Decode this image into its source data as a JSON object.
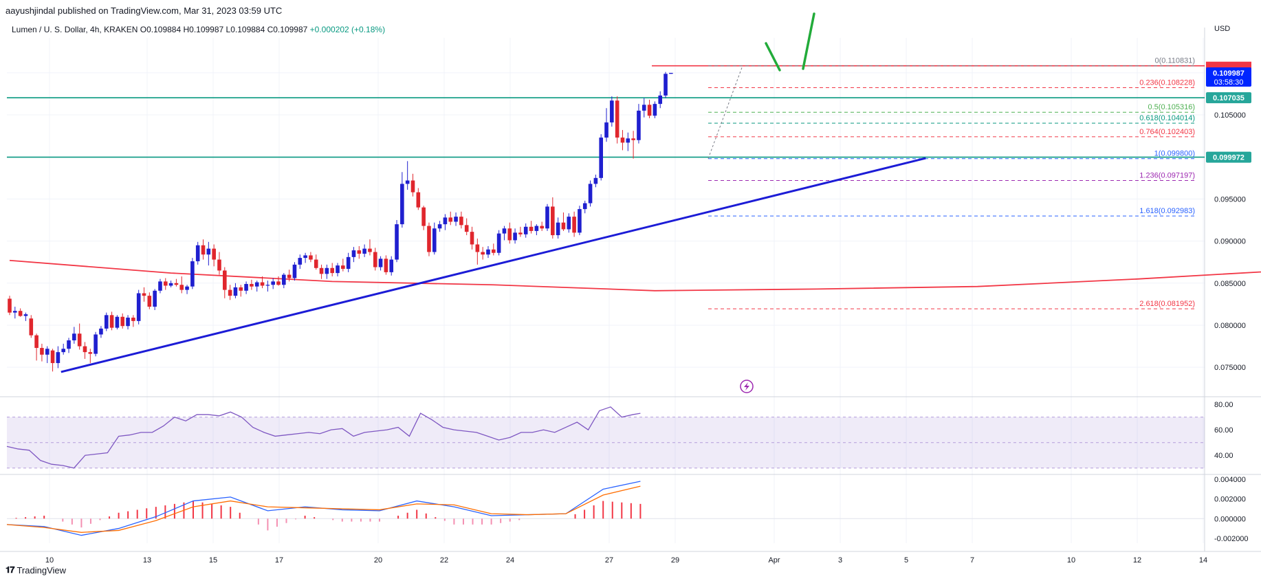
{
  "header": {
    "published": "aayushjindal published on TradingView.com, Mar 31, 2023 03:59 UTC",
    "symbol": "Lumen / U. S. Dollar, 4h, KRAKEN",
    "ohlc": "O0.109884 H0.109987 L0.109884 C0.109987",
    "change": "+0.000202 (+0.18%)"
  },
  "footer": {
    "brand": "TradingView",
    "logo": "tradingview-logo-icon"
  },
  "chart_data": {
    "type": "candlestick",
    "currency_label": "USD",
    "x_tick_labels": [
      "10",
      "13",
      "15",
      "17",
      "20",
      "22",
      "24",
      "27",
      "29",
      "Apr",
      "3",
      "5",
      "7",
      "10",
      "12",
      "14"
    ],
    "price_axis": {
      "ylim": [
        0.0715,
        0.1162
      ],
      "ticks": [
        "0.075000",
        "0.080000",
        "0.085000",
        "0.090000",
        "0.095000",
        "0.105000"
      ]
    },
    "price_badges": [
      {
        "label": "0.109987",
        "sub": "03:58:30",
        "value": 0.109987,
        "color": "#0026ff"
      },
      {
        "label": "0.107035",
        "value": 0.107035,
        "color": "#26a69a"
      },
      {
        "label": "0.099972",
        "value": 0.099972,
        "color": "#26a69a"
      }
    ],
    "horizontal_lines": [
      {
        "value": 0.107035,
        "color": "#089981"
      },
      {
        "value": 0.099972,
        "color": "#089981"
      },
      {
        "value": 0.11083,
        "color": "#f23645"
      }
    ],
    "trendline": {
      "from": {
        "x": 10.35,
        "y": 0.07445
      },
      "to": {
        "x": 36.55,
        "y": 0.09985
      },
      "color": "#1c1cd6"
    },
    "fibonacci": [
      {
        "label": "0(0.110831)",
        "value": 0.110831,
        "color": "#787b86"
      },
      {
        "label": "0.236(0.108228)",
        "value": 0.108228,
        "color": "#f23645"
      },
      {
        "label": "0.5(0.105316)",
        "value": 0.105316,
        "color": "#4caf50"
      },
      {
        "label": "0.618(0.104014)",
        "value": 0.104014,
        "color": "#089981"
      },
      {
        "label": "0.764(0.102403)",
        "value": 0.102403,
        "color": "#f23645"
      },
      {
        "label": "1(0.099800)",
        "value": 0.0998,
        "color": "#2962ff"
      },
      {
        "label": "1.236(0.097197)",
        "value": 0.097197,
        "color": "#9c27b0"
      },
      {
        "label": "1.618(0.092983)",
        "value": 0.092983,
        "color": "#2962ff"
      },
      {
        "label": "2.618(0.081952)",
        "value": 0.081952,
        "color": "#f23645"
      }
    ],
    "candles": [
      [
        0.08315,
        0.0835,
        0.0812,
        0.0815
      ],
      [
        0.0815,
        0.0822,
        0.0808,
        0.0817
      ],
      [
        0.0817,
        0.082,
        0.081,
        0.0811
      ],
      [
        0.0811,
        0.0815,
        0.0805,
        0.0813
      ],
      [
        0.0808,
        0.0812,
        0.0785,
        0.0788
      ],
      [
        0.0788,
        0.079,
        0.0758,
        0.0773
      ],
      [
        0.0773,
        0.0778,
        0.0757,
        0.0765
      ],
      [
        0.0765,
        0.0775,
        0.0755,
        0.0772
      ],
      [
        0.077,
        0.0772,
        0.0745,
        0.0755
      ],
      [
        0.0755,
        0.0775,
        0.0749,
        0.0768
      ],
      [
        0.0768,
        0.0778,
        0.0765,
        0.0772
      ],
      [
        0.0772,
        0.0785,
        0.0767,
        0.0782
      ],
      [
        0.0782,
        0.0798,
        0.0778,
        0.079
      ],
      [
        0.079,
        0.0802,
        0.0771,
        0.0775
      ],
      [
        0.0775,
        0.078,
        0.076,
        0.0768
      ],
      [
        0.0768,
        0.0772,
        0.0755,
        0.0766
      ],
      [
        0.0766,
        0.0792,
        0.0763,
        0.0789
      ],
      [
        0.0789,
        0.0799,
        0.0785,
        0.0796
      ],
      [
        0.0796,
        0.0815,
        0.0793,
        0.0812
      ],
      [
        0.0812,
        0.0816,
        0.0794,
        0.0797
      ],
      [
        0.0797,
        0.0812,
        0.0795,
        0.081
      ],
      [
        0.081,
        0.0814,
        0.0796,
        0.0799
      ],
      [
        0.0799,
        0.0812,
        0.0795,
        0.0809
      ],
      [
        0.0809,
        0.0812,
        0.0798,
        0.0805
      ],
      [
        0.0805,
        0.0842,
        0.0801,
        0.0838
      ],
      [
        0.0838,
        0.0845,
        0.0828,
        0.0835
      ],
      [
        0.0835,
        0.0839,
        0.0819,
        0.0822
      ],
      [
        0.0822,
        0.0843,
        0.0818,
        0.0841
      ],
      [
        0.0841,
        0.0855,
        0.0838,
        0.0852
      ],
      [
        0.0852,
        0.0856,
        0.0842,
        0.0847
      ],
      [
        0.0847,
        0.0853,
        0.0845,
        0.085
      ],
      [
        0.085,
        0.0855,
        0.0846,
        0.0848
      ],
      [
        0.0848,
        0.0858,
        0.0838,
        0.0842
      ],
      [
        0.0842,
        0.0848,
        0.0837,
        0.0846
      ],
      [
        0.0846,
        0.088,
        0.0843,
        0.0876
      ],
      [
        0.0876,
        0.0899,
        0.0872,
        0.0895
      ],
      [
        0.0895,
        0.0902,
        0.0878,
        0.0884
      ],
      [
        0.0884,
        0.0899,
        0.0871,
        0.0891
      ],
      [
        0.0891,
        0.0896,
        0.087,
        0.0878
      ],
      [
        0.0878,
        0.0887,
        0.086,
        0.0865
      ],
      [
        0.0865,
        0.0869,
        0.0832,
        0.0842
      ],
      [
        0.0842,
        0.0848,
        0.083,
        0.0835
      ],
      [
        0.0835,
        0.085,
        0.0832,
        0.0845
      ],
      [
        0.0845,
        0.0848,
        0.0834,
        0.0841
      ],
      [
        0.0841,
        0.0852,
        0.0837,
        0.0849
      ],
      [
        0.0849,
        0.0854,
        0.0842,
        0.0846
      ],
      [
        0.0846,
        0.0853,
        0.084,
        0.0851
      ],
      [
        0.0851,
        0.0858,
        0.0844,
        0.0847
      ],
      [
        0.0847,
        0.0853,
        0.084,
        0.0848
      ],
      [
        0.0848,
        0.0856,
        0.0843,
        0.0852
      ],
      [
        0.0852,
        0.0858,
        0.0847,
        0.0848
      ],
      [
        0.0848,
        0.0862,
        0.0844,
        0.086
      ],
      [
        0.086,
        0.0866,
        0.0852,
        0.0856
      ],
      [
        0.0856,
        0.0875,
        0.0853,
        0.0872
      ],
      [
        0.0872,
        0.0884,
        0.0867,
        0.088
      ],
      [
        0.088,
        0.0886,
        0.0874,
        0.0883
      ],
      [
        0.0883,
        0.0887,
        0.0875,
        0.0878
      ],
      [
        0.0878,
        0.0884,
        0.0866,
        0.0868
      ],
      [
        0.0868,
        0.0872,
        0.0855,
        0.0861
      ],
      [
        0.0861,
        0.0872,
        0.0855,
        0.0868
      ],
      [
        0.0868,
        0.0874,
        0.0858,
        0.0862
      ],
      [
        0.0862,
        0.0874,
        0.0858,
        0.0871
      ],
      [
        0.0871,
        0.0879,
        0.0864,
        0.0867
      ],
      [
        0.0867,
        0.0886,
        0.0863,
        0.0881
      ],
      [
        0.0881,
        0.0893,
        0.0875,
        0.0889
      ],
      [
        0.0889,
        0.0894,
        0.0879,
        0.0885
      ],
      [
        0.0885,
        0.0896,
        0.0881,
        0.0891
      ],
      [
        0.0891,
        0.0902,
        0.0883,
        0.0887
      ],
      [
        0.0887,
        0.0892,
        0.0865,
        0.0869
      ],
      [
        0.0869,
        0.0882,
        0.0865,
        0.0879
      ],
      [
        0.0879,
        0.0883,
        0.086,
        0.0863
      ],
      [
        0.0863,
        0.0882,
        0.0859,
        0.0878
      ],
      [
        0.0878,
        0.0925,
        0.0875,
        0.092
      ],
      [
        0.092,
        0.0982,
        0.0916,
        0.0968
      ],
      [
        0.0968,
        0.0995,
        0.0961,
        0.0972
      ],
      [
        0.0972,
        0.098,
        0.0953,
        0.0958
      ],
      [
        0.0958,
        0.0963,
        0.0937,
        0.094
      ],
      [
        0.094,
        0.0942,
        0.0913,
        0.0918
      ],
      [
        0.0918,
        0.0922,
        0.0882,
        0.0887
      ],
      [
        0.0887,
        0.0922,
        0.0884,
        0.0915
      ],
      [
        0.0915,
        0.0924,
        0.0911,
        0.092
      ],
      [
        0.092,
        0.0932,
        0.0913,
        0.0928
      ],
      [
        0.0928,
        0.0935,
        0.0919,
        0.0923
      ],
      [
        0.0923,
        0.0934,
        0.0918,
        0.0929
      ],
      [
        0.0929,
        0.0935,
        0.0915,
        0.0919
      ],
      [
        0.0919,
        0.0927,
        0.0907,
        0.0911
      ],
      [
        0.0911,
        0.0917,
        0.089,
        0.0896
      ],
      [
        0.0896,
        0.0903,
        0.0872,
        0.0887
      ],
      [
        0.0887,
        0.0893,
        0.0878,
        0.0884
      ],
      [
        0.0884,
        0.0894,
        0.088,
        0.089
      ],
      [
        0.089,
        0.0897,
        0.0883,
        0.0886
      ],
      [
        0.0886,
        0.0913,
        0.0883,
        0.0909
      ],
      [
        0.0909,
        0.0918,
        0.0901,
        0.0915
      ],
      [
        0.0915,
        0.0922,
        0.0897,
        0.0901
      ],
      [
        0.0901,
        0.0915,
        0.0897,
        0.091
      ],
      [
        0.091,
        0.0917,
        0.0905,
        0.0908
      ],
      [
        0.0908,
        0.0921,
        0.0904,
        0.0917
      ],
      [
        0.0917,
        0.0924,
        0.0909,
        0.0912
      ],
      [
        0.0912,
        0.092,
        0.0907,
        0.0918
      ],
      [
        0.0918,
        0.0923,
        0.0912,
        0.0915
      ],
      [
        0.0915,
        0.0944,
        0.0912,
        0.0941
      ],
      [
        0.0941,
        0.0952,
        0.0903,
        0.0907
      ],
      [
        0.0907,
        0.0928,
        0.0903,
        0.0922
      ],
      [
        0.0922,
        0.0934,
        0.0912,
        0.0914
      ],
      [
        0.0914,
        0.0933,
        0.091,
        0.0929
      ],
      [
        0.0929,
        0.0935,
        0.0905,
        0.091
      ],
      [
        0.091,
        0.0942,
        0.0907,
        0.0938
      ],
      [
        0.0938,
        0.0948,
        0.0933,
        0.0945
      ],
      [
        0.0945,
        0.0972,
        0.0941,
        0.0968
      ],
      [
        0.0968,
        0.0979,
        0.0964,
        0.0975
      ],
      [
        0.0975,
        0.1027,
        0.0972,
        0.1023
      ],
      [
        0.1023,
        0.1058,
        0.1018,
        0.1041
      ],
      [
        0.1041,
        0.1072,
        0.1036,
        0.1067
      ],
      [
        0.1067,
        0.1072,
        0.1016,
        0.1023
      ],
      [
        0.1023,
        0.1032,
        0.1008,
        0.1017
      ],
      [
        0.1017,
        0.1029,
        0.1007,
        0.1022
      ],
      [
        0.1022,
        0.1031,
        0.0998,
        0.102
      ],
      [
        0.102,
        0.1063,
        0.1016,
        0.1055
      ],
      [
        0.1055,
        0.107,
        0.1047,
        0.1062
      ],
      [
        0.1062,
        0.1068,
        0.1046,
        0.1049
      ],
      [
        0.1049,
        0.1066,
        0.1046,
        0.1063
      ],
      [
        0.1063,
        0.1078,
        0.1058,
        0.1073
      ],
      [
        0.1073,
        0.1101,
        0.107,
        0.10988
      ],
      [
        0.10988,
        0.10999,
        0.10988,
        0.10999
      ]
    ],
    "ma": {
      "color": "#f23645",
      "values": [
        [
          0,
          0.0877
        ],
        [
          30,
          0.0862
        ],
        [
          60,
          0.0852
        ],
        [
          90,
          0.0848
        ],
        [
          120,
          0.0841
        ],
        [
          150,
          0.0843
        ],
        [
          180,
          0.0846
        ],
        [
          210,
          0.0855
        ],
        [
          240,
          0.0866
        ],
        [
          265,
          0.0875
        ],
        [
          290,
          0.0886
        ],
        [
          313,
          0.0894
        ],
        [
          327,
          0.0905
        ],
        [
          340,
          0.0919
        ]
      ]
    },
    "rsi": {
      "ylim": [
        25,
        86
      ],
      "ticks": [
        "80.00",
        "60.00",
        "40.00"
      ],
      "band": [
        30,
        70
      ],
      "color": "#7e57c2",
      "values": [
        [
          0,
          47
        ],
        [
          6,
          45
        ],
        [
          12,
          44
        ],
        [
          18,
          36
        ],
        [
          24,
          33
        ],
        [
          30,
          32
        ],
        [
          36,
          30
        ],
        [
          42,
          40
        ],
        [
          48,
          41
        ],
        [
          54,
          42
        ],
        [
          60,
          55
        ],
        [
          66,
          56
        ],
        [
          72,
          58
        ],
        [
          78,
          58
        ],
        [
          84,
          63
        ],
        [
          90,
          70
        ],
        [
          96,
          67
        ],
        [
          102,
          72
        ],
        [
          108,
          72
        ],
        [
          114,
          71
        ],
        [
          120,
          74
        ],
        [
          126,
          70
        ],
        [
          132,
          62
        ],
        [
          138,
          58
        ],
        [
          144,
          55
        ],
        [
          150,
          56
        ],
        [
          156,
          57
        ],
        [
          162,
          58
        ],
        [
          168,
          57
        ],
        [
          174,
          60
        ],
        [
          180,
          61
        ],
        [
          186,
          55
        ],
        [
          192,
          58
        ],
        [
          198,
          59
        ],
        [
          204,
          60
        ],
        [
          210,
          62
        ],
        [
          216,
          55
        ],
        [
          222,
          73
        ],
        [
          228,
          68
        ],
        [
          234,
          62
        ],
        [
          240,
          60
        ],
        [
          246,
          59
        ],
        [
          252,
          58
        ],
        [
          258,
          55
        ],
        [
          264,
          52
        ],
        [
          270,
          54
        ],
        [
          276,
          58
        ],
        [
          282,
          58
        ],
        [
          288,
          60
        ],
        [
          294,
          58
        ],
        [
          300,
          62
        ],
        [
          306,
          66
        ],
        [
          312,
          60
        ],
        [
          318,
          75
        ],
        [
          324,
          78
        ],
        [
          330,
          70
        ],
        [
          336,
          72
        ],
        [
          340,
          73
        ]
      ]
    },
    "macd": {
      "ylim": [
        -0.0025,
        0.0045
      ],
      "ticks": [
        "0.004000",
        "0.002000",
        "0.000000",
        "-0.002000"
      ],
      "macd_color": "#2962ff",
      "signal_color": "#ff6d00",
      "hist_color": "#f23645",
      "macd": [
        [
          0,
          -0.0006
        ],
        [
          20,
          -0.0008
        ],
        [
          40,
          -0.0017
        ],
        [
          60,
          -0.001
        ],
        [
          80,
          0.0002
        ],
        [
          100,
          0.0018
        ],
        [
          120,
          0.0022
        ],
        [
          140,
          0.0008
        ],
        [
          160,
          0.0012
        ],
        [
          180,
          0.0009
        ],
        [
          200,
          0.0008
        ],
        [
          220,
          0.0018
        ],
        [
          240,
          0.0012
        ],
        [
          260,
          0.0003
        ],
        [
          280,
          0.0004
        ],
        [
          300,
          0.0005
        ],
        [
          320,
          0.003
        ],
        [
          340,
          0.0038
        ]
      ],
      "signal": [
        [
          0,
          -0.0006
        ],
        [
          20,
          -0.0009
        ],
        [
          40,
          -0.0014
        ],
        [
          60,
          -0.0012
        ],
        [
          80,
          -0.0002
        ],
        [
          100,
          0.0012
        ],
        [
          120,
          0.0018
        ],
        [
          140,
          0.0012
        ],
        [
          160,
          0.0011
        ],
        [
          180,
          0.001
        ],
        [
          200,
          0.0009
        ],
        [
          220,
          0.0015
        ],
        [
          240,
          0.0014
        ],
        [
          260,
          0.0005
        ],
        [
          280,
          0.0004
        ],
        [
          300,
          0.0005
        ],
        [
          320,
          0.0024
        ],
        [
          340,
          0.0033
        ]
      ]
    }
  }
}
